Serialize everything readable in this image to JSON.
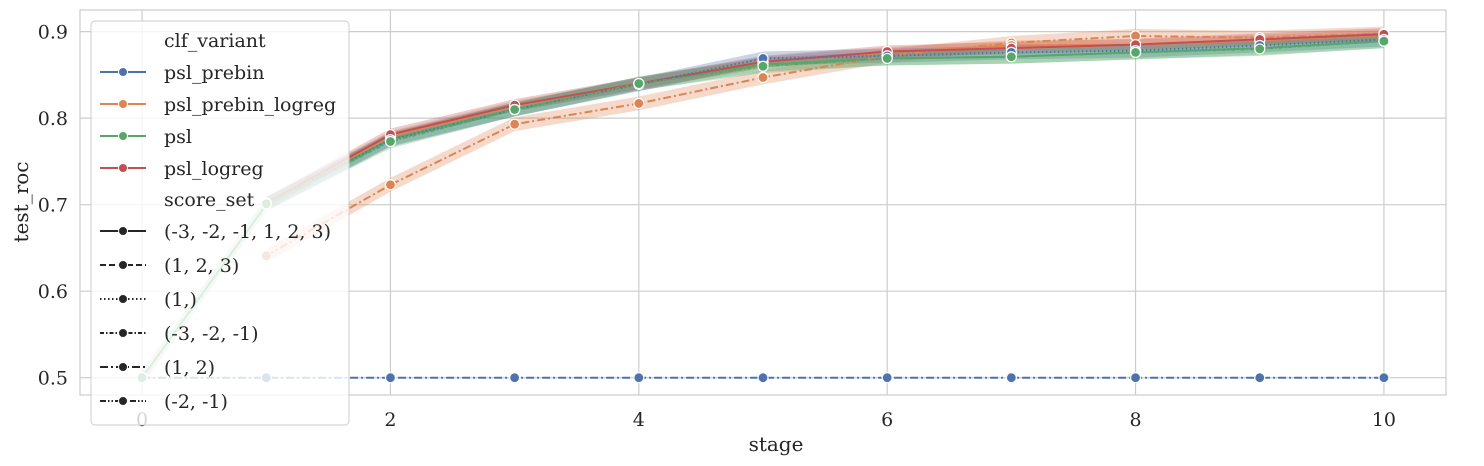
{
  "chart_data": {
    "type": "line",
    "xlabel": "stage",
    "ylabel": "test_roc",
    "xlim": [
      -0.5,
      10.5
    ],
    "ylim": [
      0.48,
      0.925
    ],
    "xticks": [
      "0",
      "2",
      "4",
      "6",
      "8",
      "10"
    ],
    "yticks": [
      "0.5",
      "0.6",
      "0.7",
      "0.8",
      "0.9"
    ],
    "grid": true,
    "legend": {
      "placement": "upper-left",
      "hue_title": "clf_variant",
      "hue_entries": [
        {
          "label": "psl_prebin",
          "color": "#4c72b0"
        },
        {
          "label": "psl_prebin_logreg",
          "color": "#dd8452"
        },
        {
          "label": "psl",
          "color": "#55a868"
        },
        {
          "label": "psl_logreg",
          "color": "#c44e52"
        }
      ],
      "style_title": "score_set",
      "style_entries": [
        {
          "label": "(-3, -2, -1, 1, 2, 3)",
          "dash": "solid"
        },
        {
          "label": "(1, 2, 3)",
          "dash": "dashed"
        },
        {
          "label": "(1,)",
          "dash": "dotted"
        },
        {
          "label": "(-3, -2, -1)",
          "dash": "dash-dot-fine"
        },
        {
          "label": "(1, 2)",
          "dash": "dash-dot"
        },
        {
          "label": "(-2, -1)",
          "dash": "dash-dot-dot"
        }
      ]
    },
    "series": [
      {
        "name": "psl_prebin",
        "color": "#4c72b0",
        "x": [
          0,
          1,
          2,
          3,
          4,
          5,
          6,
          7,
          8,
          9,
          10
        ],
        "y": [
          0.5,
          0.5,
          0.5,
          0.5,
          0.5,
          0.5,
          0.5,
          0.5,
          0.5,
          0.5,
          0.5
        ],
        "dash": "dash-dot",
        "band": 0
      },
      {
        "name": "psl",
        "color": "#55a868",
        "x": [
          0,
          1,
          2,
          3,
          4,
          5,
          6,
          7,
          8,
          9,
          10
        ],
        "y": [
          0.5,
          0.7,
          0.776,
          0.81,
          0.84,
          0.862,
          0.869,
          0.871,
          0.876,
          0.881,
          0.889
        ],
        "dash": "solid",
        "band": 0.008
      },
      {
        "name": "psl_prebin_logreg",
        "color": "#dd8452",
        "x": [
          1,
          2,
          3,
          4,
          5,
          6,
          7,
          8,
          9,
          10
        ],
        "y": [
          0.641,
          0.723,
          0.793,
          0.817,
          0.847,
          0.872,
          0.887,
          0.895,
          0.893,
          0.898
        ],
        "dash": "dash-dot",
        "band": 0.008
      },
      {
        "name": "psl_prebin_logreg",
        "color": "#dd8452",
        "x": [
          1,
          2,
          3,
          4,
          5,
          6,
          7,
          8,
          9,
          10
        ],
        "y": [
          0.702,
          0.779,
          0.814,
          0.84,
          0.865,
          0.876,
          0.884,
          0.885,
          0.89,
          0.896
        ],
        "dash": "solid",
        "band": 0.006
      },
      {
        "name": "psl_logreg",
        "color": "#c44e52",
        "x": [
          1,
          2,
          3,
          4,
          5,
          6,
          7,
          8,
          9,
          10
        ],
        "y": [
          0.702,
          0.781,
          0.815,
          0.84,
          0.865,
          0.877,
          0.881,
          0.885,
          0.891,
          0.897
        ],
        "dash": "solid",
        "band": 0.007
      },
      {
        "name": "psl_prebin",
        "color": "#4c72b0",
        "x": [
          1,
          2,
          3,
          4,
          5,
          6,
          7,
          8,
          9,
          10
        ],
        "y": [
          0.701,
          0.775,
          0.81,
          0.839,
          0.869,
          0.872,
          0.876,
          0.878,
          0.884,
          0.891
        ],
        "dash": "dotted",
        "band": 0.008
      },
      {
        "name": "psl",
        "color": "#55a868",
        "x": [
          1,
          2,
          3,
          4,
          5,
          6,
          7,
          8,
          9,
          10
        ],
        "y": [
          0.701,
          0.773,
          0.81,
          0.84,
          0.86,
          0.869,
          0.871,
          0.876,
          0.88,
          0.889
        ],
        "dash": "dash-dot-fine",
        "band": 0.008
      }
    ]
  }
}
